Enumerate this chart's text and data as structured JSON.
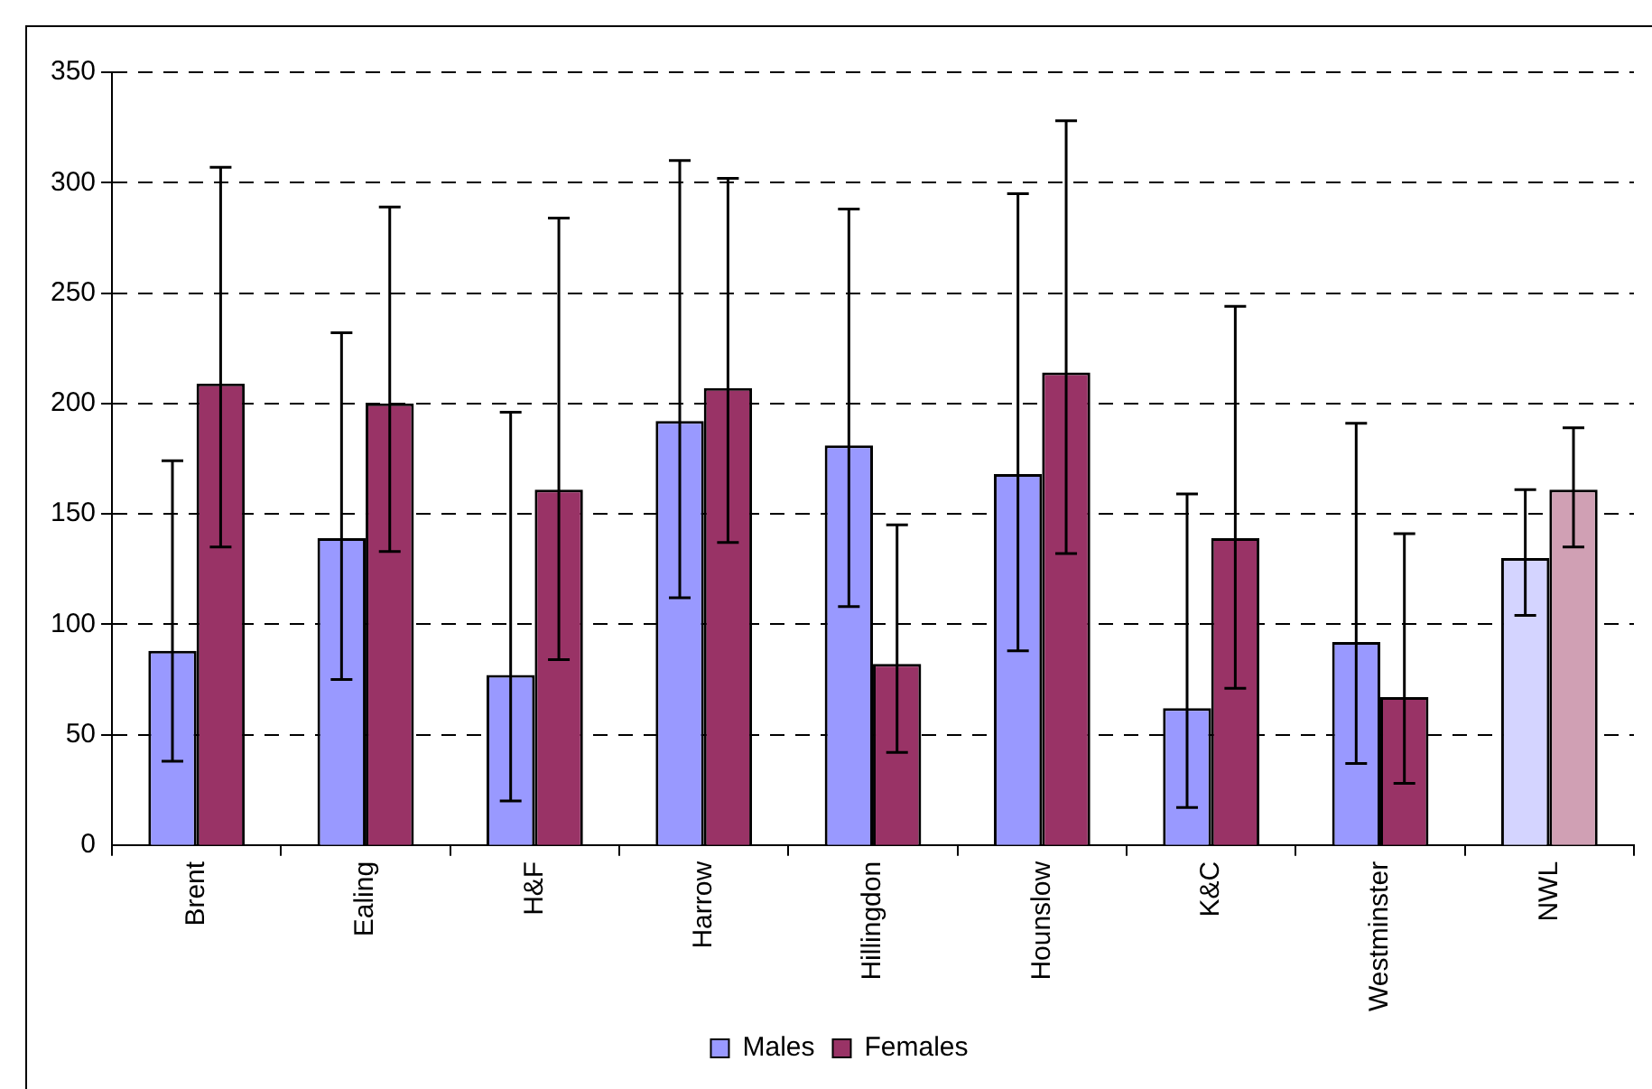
{
  "chart_data": {
    "type": "bar",
    "categories": [
      "Brent",
      "Ealing",
      "H&F",
      "Harrow",
      "Hillingdon",
      "Hounslow",
      "K&C",
      "Westminster",
      "NWL"
    ],
    "series": [
      {
        "name": "Males",
        "color": "#9999ff",
        "colors": [
          "#9999ff",
          "#9999ff",
          "#9999ff",
          "#9999ff",
          "#9999ff",
          "#9999ff",
          "#9999ff",
          "#9999ff",
          "#d4d4ff"
        ],
        "values": [
          88,
          139,
          77,
          192,
          181,
          168,
          62,
          92,
          130
        ],
        "errors": [
          [
            38,
            174
          ],
          [
            75,
            232
          ],
          [
            20,
            196
          ],
          [
            112,
            310
          ],
          [
            108,
            288
          ],
          [
            88,
            295
          ],
          [
            17,
            159
          ],
          [
            37,
            191
          ],
          [
            104,
            161
          ]
        ]
      },
      {
        "name": "Females",
        "color": "#993366",
        "colors": [
          "#993366",
          "#993366",
          "#993366",
          "#993366",
          "#993366",
          "#993366",
          "#993366",
          "#993366",
          "#d0a0b4"
        ],
        "values": [
          209,
          200,
          161,
          207,
          82,
          214,
          139,
          67,
          161
        ],
        "errors": [
          [
            135,
            307
          ],
          [
            133,
            289
          ],
          [
            84,
            284
          ],
          [
            137,
            302
          ],
          [
            42,
            145
          ],
          [
            132,
            328
          ],
          [
            71,
            244
          ],
          [
            28,
            141
          ],
          [
            135,
            189
          ]
        ]
      }
    ],
    "ylim": [
      0,
      350
    ],
    "yticks": [
      0,
      50,
      100,
      150,
      200,
      250,
      300,
      350
    ],
    "grid": "y",
    "legend": "bottom"
  }
}
